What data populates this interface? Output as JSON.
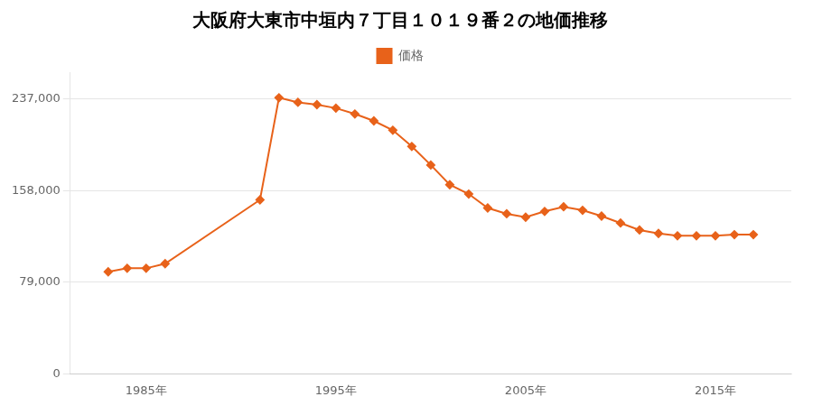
{
  "chart_data": {
    "type": "line",
    "title": "大阪府大東市中垣内７丁目１０１９番２の地価推移",
    "x": [
      1983,
      1984,
      1985,
      1986,
      1991,
      1992,
      1993,
      1994,
      1995,
      1996,
      1997,
      1998,
      1999,
      2000,
      2001,
      2002,
      2003,
      2004,
      2005,
      2006,
      2007,
      2008,
      2009,
      2010,
      2011,
      2012,
      2013,
      2014,
      2015,
      2016,
      2017
    ],
    "series": [
      {
        "name": "価格",
        "color": "#E8621A",
        "marker": "diamond",
        "values": [
          88000,
          91000,
          91000,
          95000,
          150000,
          238000,
          234000,
          232000,
          229000,
          224000,
          218000,
          210000,
          196000,
          180000,
          163000,
          155000,
          143000,
          138000,
          135000,
          140000,
          144000,
          141000,
          136000,
          130000,
          124000,
          121000,
          119000,
          119000,
          119000,
          120000,
          120000
        ]
      }
    ],
    "xlim": [
      1981,
      2019
    ],
    "xticks": [
      {
        "value": 1985,
        "label": "1985年"
      },
      {
        "value": 1995,
        "label": "1995年"
      },
      {
        "value": 2005,
        "label": "2005年"
      },
      {
        "value": 2015,
        "label": "2015年"
      }
    ],
    "ylim": [
      0,
      260000
    ],
    "yticks": [
      0,
      {
        "value": 79000,
        "label": "79,000"
      },
      {
        "value": 158000,
        "label": "158,000"
      },
      {
        "value": 237000,
        "label": "237,000"
      }
    ],
    "grid": "y",
    "legend": "top"
  }
}
